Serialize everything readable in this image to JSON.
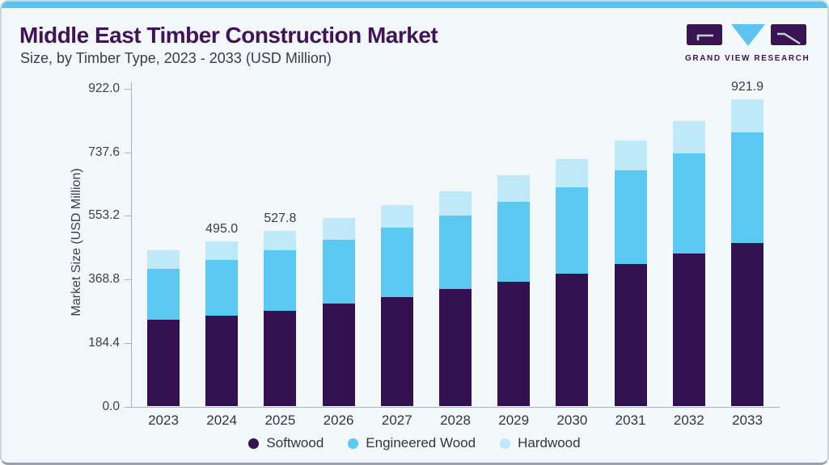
{
  "header": {
    "title": "Middle East Timber Construction Market",
    "subtitle": "Size, by Timber Type, 2023 - 2033 (USD Million)"
  },
  "logo": {
    "brand": "GRAND VIEW RESEARCH"
  },
  "colors": {
    "accent": "#58c4ee",
    "card_background": "#f2f7fa",
    "title_purple": "#411359",
    "softwood": "#341150",
    "engineered_wood": "#5cc9f2",
    "hardwood": "#bfe8f9"
  },
  "chart_data": {
    "type": "bar",
    "stacked": true,
    "title": "Middle East Timber Construction Market",
    "subtitle": "Size, by Timber Type, 2023 - 2033 (USD Million)",
    "xlabel": "",
    "ylabel": "Market Size (USD Million)",
    "ylim": [
      0,
      922
    ],
    "yticks": [
      "0.0",
      "184.4",
      "368.8",
      "553.2",
      "737.6",
      "922.0"
    ],
    "grid": false,
    "legend_position": "bottom",
    "categories": [
      "2023",
      "2024",
      "2025",
      "2026",
      "2027",
      "2028",
      "2029",
      "2030",
      "2031",
      "2032",
      "2033"
    ],
    "series": [
      {
        "name": "Softwood",
        "color": "#341150",
        "values": [
          260.5,
          272.9,
          287.6,
          309.7,
          329.1,
          351.9,
          373.8,
          398.7,
          428.6,
          458.6,
          491.6
        ]
      },
      {
        "name": "Engineered Wood",
        "color": "#5cc9f2",
        "values": [
          153.5,
          167.0,
          180.7,
          191.6,
          207.9,
          222.2,
          240.8,
          260.3,
          280.6,
          301.5,
          330.9
        ]
      },
      {
        "name": "Hardwood",
        "color": "#bfe8f9",
        "values": [
          54.3,
          55.1,
          59.5,
          65.5,
          68.6,
          72.0,
          79.3,
          83.4,
          89.7,
          96.3,
          99.4
        ]
      }
    ],
    "totals": [
      468.3,
      495.0,
      527.8,
      566.8,
      605.6,
      646.1,
      693.9,
      742.4,
      798.9,
      856.4,
      921.9
    ],
    "visible_total_labels": {
      "2024": "495.0",
      "2025": "527.8",
      "2033": "921.9"
    }
  }
}
